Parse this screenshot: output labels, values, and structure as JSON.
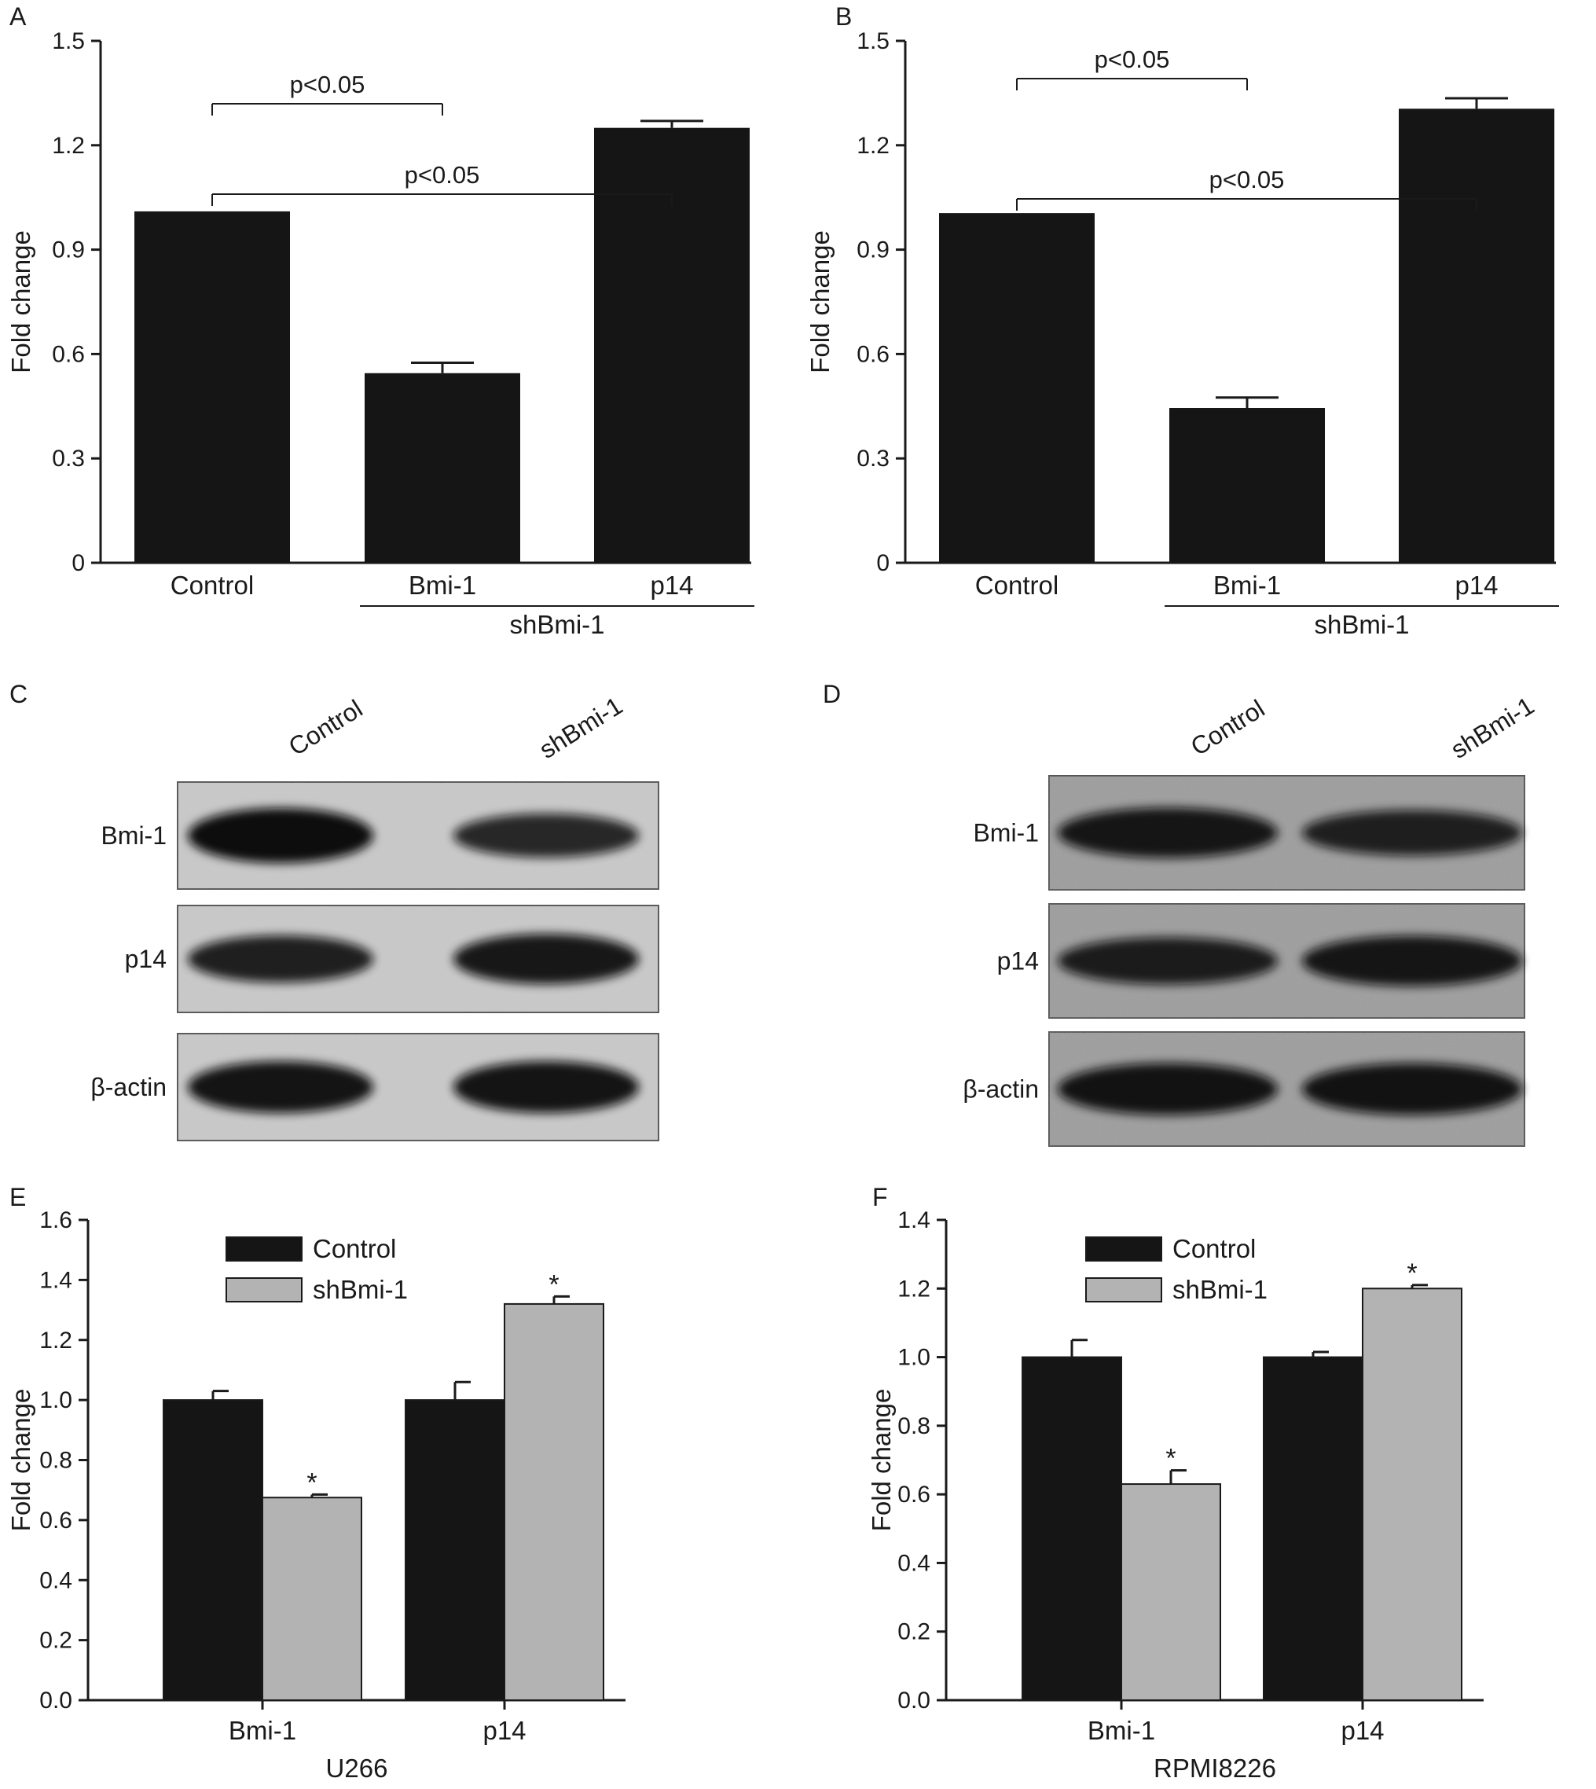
{
  "figure": {
    "blot_panels": [
      {
        "letter": "C",
        "lane_labels": [
          "Control",
          "shBmi-1"
        ],
        "rows": [
          {
            "label": "Bmi-1",
            "band_intensity": [
              1.0,
              0.65
            ]
          },
          {
            "label": "p14",
            "band_intensity": [
              0.75,
              0.85
            ]
          },
          {
            "label": "β-actin",
            "band_intensity": [
              0.9,
              0.9
            ]
          }
        ]
      },
      {
        "letter": "D",
        "lane_labels": [
          "Control",
          "shBmi-1"
        ],
        "rows": [
          {
            "label": "Bmi-1",
            "band_intensity": [
              0.85,
              0.7
            ]
          },
          {
            "label": "p14",
            "band_intensity": [
              0.75,
              0.85
            ]
          },
          {
            "label": "β-actin",
            "band_intensity": [
              0.9,
              0.9
            ]
          }
        ]
      }
    ],
    "colors": {
      "control": "#151515",
      "shbmi": "#b3b3b3",
      "axis": "#1a1a1a"
    }
  },
  "chart_data": [
    {
      "letter": "A",
      "type": "bar",
      "categories": [
        "Control",
        "Bmi-1",
        "p14"
      ],
      "values": [
        1.01,
        0.545,
        1.25
      ],
      "errors": [
        0.0,
        0.03,
        0.02
      ],
      "ylabel": "Fold change",
      "ylim": [
        0,
        1.5
      ],
      "yticks": [
        0,
        0.3,
        0.6,
        0.9,
        1.2,
        1.5
      ],
      "ytick_labels": [
        "0",
        "0.3",
        "0.6",
        "0.9",
        "1.2",
        "1.5"
      ],
      "group_label": "shBmi-1",
      "group_span": [
        1,
        2
      ],
      "brackets": [
        {
          "from": 0,
          "to": 1,
          "text": "p<0.05"
        },
        {
          "from": 0,
          "to": 2,
          "text": "p<0.05"
        }
      ]
    },
    {
      "letter": "B",
      "type": "bar",
      "categories": [
        "Control",
        "Bmi-1",
        "p14"
      ],
      "values": [
        1.005,
        0.445,
        1.305
      ],
      "errors": [
        0.0,
        0.03,
        0.03
      ],
      "ylabel": "Fold change",
      "ylim": [
        0,
        1.5
      ],
      "yticks": [
        0,
        0.3,
        0.6,
        0.9,
        1.2,
        1.5
      ],
      "ytick_labels": [
        "0",
        "0.3",
        "0.6",
        "0.9",
        "1.2",
        "1.5"
      ],
      "group_label": "shBmi-1",
      "group_span": [
        1,
        2
      ],
      "brackets": [
        {
          "from": 0,
          "to": 1,
          "text": "p<0.05"
        },
        {
          "from": 0,
          "to": 2,
          "text": "p<0.05"
        }
      ]
    },
    {
      "letter": "E",
      "type": "bar",
      "categories": [
        "Bmi-1",
        "p14"
      ],
      "series": [
        {
          "name": "Control",
          "values": [
            1.0,
            1.0
          ],
          "errors": [
            0.03,
            0.06
          ]
        },
        {
          "name": "shBmi-1",
          "values": [
            0.675,
            1.32
          ],
          "errors": [
            0.01,
            0.025
          ]
        }
      ],
      "significance": [
        "*",
        "*"
      ],
      "ylabel": "Fold change",
      "xlabel": "U266",
      "ylim": [
        0,
        1.6
      ],
      "yticks": [
        0,
        0.2,
        0.4,
        0.6,
        0.8,
        1.0,
        1.2,
        1.4,
        1.6
      ],
      "ytick_labels": [
        "0.0",
        "0.2",
        "0.4",
        "0.6",
        "0.8",
        "1.0",
        "1.2",
        "1.4",
        "1.6"
      ],
      "legend_position": "top-left"
    },
    {
      "letter": "F",
      "type": "bar",
      "categories": [
        "Bmi-1",
        "p14"
      ],
      "series": [
        {
          "name": "Control",
          "values": [
            1.0,
            1.0
          ],
          "errors": [
            0.05,
            0.015
          ]
        },
        {
          "name": "shBmi-1",
          "values": [
            0.63,
            1.2
          ],
          "errors": [
            0.04,
            0.01
          ]
        }
      ],
      "significance": [
        "*",
        "*"
      ],
      "ylabel": "Fold change",
      "xlabel": "RPMI8226",
      "ylim": [
        0,
        1.4
      ],
      "yticks": [
        0,
        0.2,
        0.4,
        0.6,
        0.8,
        1.0,
        1.2,
        1.4
      ],
      "ytick_labels": [
        "0.0",
        "0.2",
        "0.4",
        "0.6",
        "0.8",
        "1.0",
        "1.2",
        "1.4"
      ],
      "legend_position": "top-left"
    }
  ]
}
